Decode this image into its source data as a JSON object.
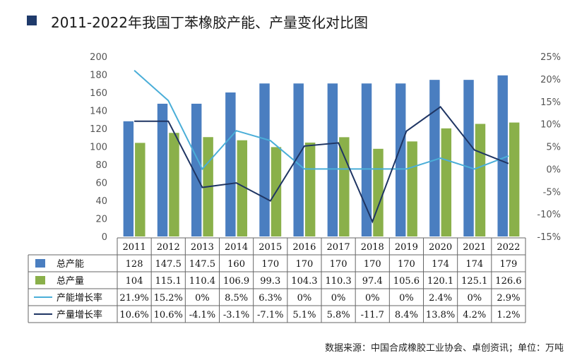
{
  "title": "2011-2022年我国丁苯橡胶产能、产量变化对比图",
  "source": "数据来源：中国合成橡胶工业协会、卓创资讯；单位：万吨",
  "colors": {
    "capacity_bar": "#4a7ec0",
    "output_bar": "#8ab04a",
    "capacity_line": "#4aaed8",
    "output_line": "#1f3563",
    "title_square": "#1f3a6b"
  },
  "chart_data": {
    "type": "bar",
    "categories": [
      "2011",
      "2012",
      "2013",
      "2014",
      "2015",
      "2016",
      "2017",
      "2018",
      "2019",
      "2020",
      "2021",
      "2022"
    ],
    "series": [
      {
        "name": "总产能",
        "kind": "bar",
        "axis": "left",
        "values": [
          128,
          147.5,
          147.5,
          160,
          170,
          170,
          170,
          170,
          170,
          174,
          174,
          179
        ],
        "labels": [
          "128",
          "147.5",
          "147.5",
          "160",
          "170",
          "170",
          "170",
          "170",
          "170",
          "174",
          "174",
          "179"
        ]
      },
      {
        "name": "总产量",
        "kind": "bar",
        "axis": "left",
        "values": [
          104,
          115.1,
          110.4,
          106.9,
          99.3,
          104.3,
          110.3,
          97.4,
          105.6,
          120.1,
          125.1,
          126.6
        ],
        "labels": [
          "104",
          "115.1",
          "110.4",
          "106.9",
          "99.3",
          "104.3",
          "110.3",
          "97.4",
          "105.6",
          "120.1",
          "125.1",
          "126.6"
        ]
      },
      {
        "name": "产能增长率",
        "kind": "line",
        "axis": "right",
        "values": [
          21.9,
          15.2,
          0,
          8.5,
          6.3,
          0,
          0,
          0,
          0,
          2.4,
          0,
          2.9
        ],
        "labels": [
          "21.9%",
          "15.2%",
          "0%",
          "8.5%",
          "6.3%",
          "0%",
          "0%",
          "0%",
          "0%",
          "2.4%",
          "0%",
          "2.9%"
        ]
      },
      {
        "name": "产量增长率",
        "kind": "line",
        "axis": "right",
        "values": [
          10.6,
          10.6,
          -4.1,
          -3.1,
          -7.1,
          5.1,
          5.8,
          -11.7,
          8.4,
          13.8,
          4.2,
          1.2
        ],
        "labels": [
          "10.6%",
          "10.6%",
          "-4.1%",
          "-3.1%",
          "-7.1%",
          "5.1%",
          "5.8%",
          "-11.7",
          "8.4%",
          "13.8%",
          "4.2%",
          "1.2%"
        ]
      }
    ],
    "left_axis": {
      "ylim": [
        0,
        200
      ],
      "ticks": [
        "0",
        "20",
        "40",
        "60",
        "80",
        "100",
        "120",
        "140",
        "160",
        "180",
        "200"
      ]
    },
    "right_axis": {
      "ylim": [
        -15,
        25
      ],
      "ticks": [
        "-15%",
        "-10%",
        "-5%",
        "0%",
        "5%",
        "10%",
        "15%",
        "20%",
        "25%"
      ]
    },
    "grid": false,
    "legend": "data-table"
  }
}
